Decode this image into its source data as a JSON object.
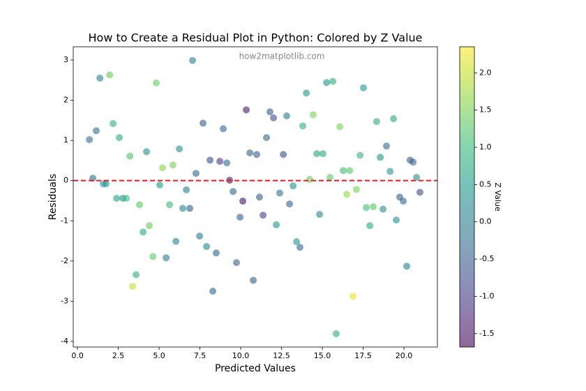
{
  "chart_data": {
    "type": "scatter",
    "title": "How to Create a Residual Plot in Python: Colored by Z Value",
    "xlabel": "Predicted Values",
    "ylabel": "Residuals",
    "watermark": "how2matplotlib.com",
    "colorbar_label": "Z Value",
    "colormap": "viridis",
    "alpha": 0.6,
    "hline": 0,
    "hline_color": "#e41a1c",
    "x": [
      0.73,
      0.94,
      1.15,
      1.37,
      1.58,
      1.75,
      1.97,
      2.18,
      2.39,
      2.56,
      2.78,
      2.99,
      3.21,
      3.38,
      3.59,
      3.8,
      4.02,
      4.23,
      4.4,
      4.62,
      4.83,
      5.04,
      5.21,
      5.43,
      5.64,
      5.85,
      6.03,
      6.24,
      6.45,
      6.67,
      6.88,
      7.05,
      7.26,
      7.48,
      7.69,
      7.91,
      8.12,
      8.29,
      8.5,
      8.72,
      8.93,
      9.15,
      9.32,
      9.53,
      9.74,
      9.96,
      10.13,
      10.34,
      10.56,
      10.77,
      10.98,
      11.15,
      11.37,
      11.58,
      11.79,
      12.01,
      12.18,
      12.39,
      12.61,
      12.82,
      12.99,
      13.21,
      13.42,
      13.63,
      13.8,
      14.02,
      14.23,
      14.44,
      14.66,
      14.83,
      15.04,
      15.26,
      15.47,
      15.64,
      15.85,
      16.07,
      16.28,
      16.5,
      16.67,
      16.88,
      17.09,
      17.31,
      17.52,
      17.69,
      17.91,
      18.12,
      18.33,
      18.55,
      18.72,
      18.93,
      19.15,
      19.36,
      19.53,
      19.74,
      19.96,
      20.17,
      20.38,
      20.56,
      20.77,
      20.98
    ],
    "values": [
      1.02,
      0.06,
      1.24,
      2.55,
      -0.08,
      -0.08,
      2.63,
      1.42,
      -0.44,
      1.07,
      -0.44,
      -0.44,
      0.61,
      -2.63,
      -2.34,
      -0.6,
      -1.28,
      0.72,
      -1.12,
      -1.89,
      2.43,
      -0.11,
      0.32,
      -1.92,
      -0.6,
      0.39,
      -1.51,
      0.79,
      -0.69,
      -0.23,
      -0.69,
      2.99,
      0.18,
      -1.38,
      1.43,
      -1.64,
      0.51,
      -2.75,
      -1.8,
      0.48,
      1.29,
      0.44,
      0.01,
      -0.27,
      -2.04,
      -0.91,
      -0.51,
      1.76,
      0.69,
      -2.48,
      0.65,
      -0.41,
      -0.86,
      1.07,
      1.71,
      1.56,
      -1.1,
      -0.31,
      0.65,
      1.61,
      -0.58,
      -0.13,
      -1.52,
      -1.66,
      1.36,
      2.18,
      0.03,
      1.64,
      0.67,
      -0.84,
      0.67,
      2.44,
      0.08,
      2.47,
      -3.81,
      1.34,
      0.25,
      -0.34,
      0.25,
      -2.88,
      -0.22,
      0.63,
      2.31,
      -0.67,
      -1.12,
      -0.65,
      1.47,
      0.58,
      -0.71,
      0.86,
      0.23,
      1.54,
      -0.98,
      -0.41,
      -0.51,
      -2.13,
      0.51,
      0.46,
      0.08,
      -0.29
    ],
    "z": [
      -0.3,
      -0.2,
      -0.2,
      0.1,
      0.3,
      0.5,
      1.4,
      0.9,
      0.6,
      0.7,
      0.3,
      1.0,
      1.2,
      2.0,
      0.8,
      1.3,
      0.7,
      0.3,
      1.4,
      1.3,
      1.4,
      0.5,
      1.6,
      0.0,
      1.0,
      1.5,
      0.1,
      0.3,
      0.2,
      0.0,
      -0.5,
      0.0,
      -0.4,
      -0.1,
      -0.5,
      0.2,
      -0.7,
      -0.4,
      -0.4,
      -1.0,
      -0.4,
      -0.3,
      -1.5,
      -0.4,
      -0.5,
      -0.5,
      -1.5,
      -1.4,
      -0.4,
      -0.5,
      -0.5,
      -0.5,
      -0.9,
      -0.4,
      -0.5,
      -0.7,
      0.4,
      -0.2,
      -0.7,
      0.0,
      -0.4,
      0.3,
      0.4,
      -0.4,
      0.8,
      0.4,
      1.4,
      1.5,
      0.7,
      0.2,
      0.7,
      0.4,
      1.3,
      0.8,
      0.8,
      1.5,
      1.1,
      1.7,
      1.3,
      2.2,
      1.5,
      1.0,
      0.5,
      1.1,
      0.7,
      1.3,
      0.8,
      0.4,
      0.3,
      -0.4,
      0.4,
      0.7,
      0.3,
      -0.5,
      -0.3,
      0.1,
      -0.6,
      -0.4,
      0.3,
      -0.7
    ],
    "xlim": [
      -0.26,
      22.05
    ],
    "ylim": [
      -4.14,
      3.33
    ],
    "zlim": [
      -1.68,
      2.35
    ],
    "xticks": [
      {
        "value": 0,
        "label": "0.0"
      },
      2.5,
      {
        "value": 5,
        "label": "5.0"
      },
      7.5,
      {
        "value": 10,
        "label": "10.0"
      },
      12.5,
      {
        "value": 15,
        "label": "15.0"
      },
      17.5,
      {
        "value": 20,
        "label": "20.0"
      }
    ],
    "yticks": [
      -4,
      -3,
      -2,
      -1,
      0,
      1,
      2,
      3
    ],
    "zticks": [
      -1.5,
      {
        "value": -1,
        "label": "-1.0"
      },
      -0.5,
      {
        "value": 0,
        "label": "0.0"
      },
      0.5,
      {
        "value": 1,
        "label": "1.0"
      },
      1.5,
      {
        "value": 2,
        "label": "2.0"
      }
    ]
  }
}
